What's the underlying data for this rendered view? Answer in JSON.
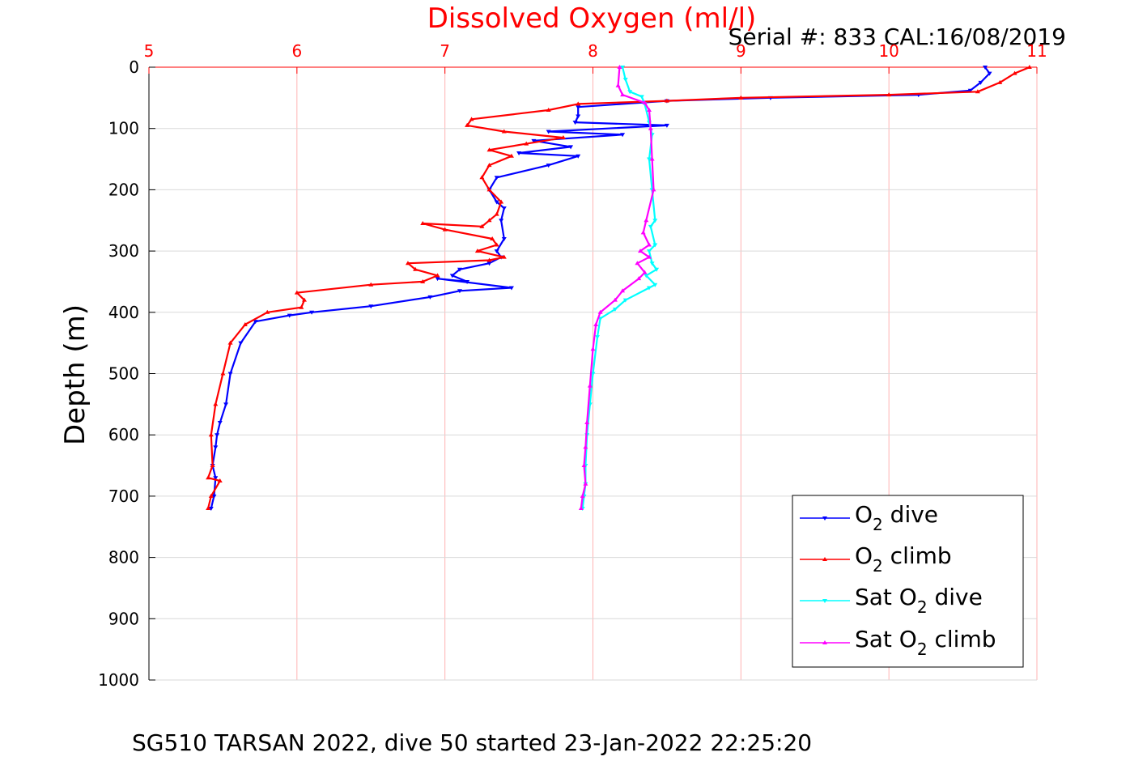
{
  "chart_data": {
    "type": "line",
    "title": "Dissolved Oxygen (ml/l)",
    "subtitle": "Serial #: 833  CAL:16/08/2019",
    "footer": "SG510 TARSAN 2022, dive 50 started 23-Jan-2022 22:25:20",
    "xlabel": "Dissolved Oxygen (ml/l)",
    "ylabel": "Depth (m)",
    "xlim": [
      5,
      11
    ],
    "ylim": [
      0,
      1000
    ],
    "y_reversed": true,
    "x_axis_position": "top",
    "x_ticks": [
      "5",
      "6",
      "7",
      "8",
      "9",
      "10",
      "11"
    ],
    "y_ticks": [
      "0",
      "100",
      "200",
      "300",
      "400",
      "500",
      "600",
      "700",
      "800",
      "900",
      "1000"
    ],
    "grid": true,
    "legend_position": "bottom-right",
    "legend": [
      {
        "main": "O",
        "sub": "2",
        "rest": " dive"
      },
      {
        "main": "O",
        "sub": "2",
        "rest": " climb"
      },
      {
        "main": "Sat O",
        "sub": "2",
        "rest": " dive"
      },
      {
        "main": "Sat O",
        "sub": "2",
        "rest": " climb"
      }
    ],
    "colors": {
      "title": "#ff0000",
      "x_ticks": "#ff0000",
      "grid_x": "#ffb3b3",
      "grid_y": "#d9d9d9",
      "axis": "#000000",
      "o2_dive": "#0000ff",
      "o2_climb": "#ff0000",
      "sat_dive": "#00ffff",
      "sat_climb": "#ff00ff"
    },
    "series": [
      {
        "key": "o2_dive",
        "color": "#0000ff",
        "marker": "triangle-down",
        "x": [
          10.65,
          10.68,
          10.62,
          10.55,
          10.2,
          9.2,
          8.5,
          7.9,
          7.9,
          7.88,
          8.5,
          7.7,
          8.2,
          7.6,
          7.85,
          7.5,
          7.9,
          7.7,
          7.35,
          7.3,
          7.35,
          7.4,
          7.38,
          7.4,
          7.35,
          7.38,
          7.3,
          7.1,
          7.05,
          7.15,
          6.95,
          7.45,
          7.1,
          6.9,
          6.5,
          6.1,
          5.95,
          5.72,
          5.62,
          5.55,
          5.52,
          5.48,
          5.46,
          5.45,
          5.43,
          5.45,
          5.44,
          5.42
        ],
        "y": [
          0,
          10,
          25,
          38,
          45,
          50,
          55,
          65,
          80,
          90,
          95,
          105,
          110,
          120,
          130,
          140,
          145,
          160,
          180,
          200,
          220,
          230,
          250,
          280,
          300,
          310,
          320,
          330,
          340,
          350,
          345,
          360,
          365,
          375,
          390,
          400,
          405,
          415,
          450,
          500,
          550,
          580,
          600,
          620,
          650,
          670,
          700,
          720
        ]
      },
      {
        "key": "o2_climb",
        "color": "#ff0000",
        "marker": "triangle-up",
        "x": [
          10.95,
          10.85,
          10.75,
          10.6,
          10.0,
          9.0,
          8.5,
          7.9,
          7.7,
          7.18,
          7.15,
          7.4,
          7.8,
          7.55,
          7.3,
          7.45,
          7.3,
          7.25,
          7.3,
          7.38,
          7.35,
          7.3,
          7.25,
          6.85,
          7.0,
          7.32,
          7.35,
          7.22,
          7.4,
          7.3,
          6.75,
          6.8,
          6.95,
          6.85,
          6.5,
          6.0,
          6.05,
          6.03,
          5.8,
          5.65,
          5.55,
          5.5,
          5.45,
          5.42,
          5.43,
          5.4,
          5.48,
          5.42,
          5.4
        ],
        "y": [
          0,
          10,
          25,
          40,
          45,
          50,
          55,
          60,
          70,
          85,
          95,
          105,
          115,
          125,
          135,
          145,
          160,
          180,
          200,
          220,
          240,
          250,
          260,
          255,
          265,
          280,
          290,
          300,
          310,
          315,
          320,
          330,
          340,
          350,
          355,
          368,
          380,
          392,
          400,
          420,
          450,
          500,
          550,
          600,
          650,
          670,
          675,
          700,
          720
        ]
      },
      {
        "key": "sat_dive",
        "color": "#00ffff",
        "marker": "triangle-down",
        "x": [
          8.2,
          8.22,
          8.25,
          8.33,
          8.35,
          8.38,
          8.4,
          8.38,
          8.4,
          8.42,
          8.39,
          8.42,
          8.38,
          8.4,
          8.43,
          8.36,
          8.42,
          8.38,
          8.22,
          8.15,
          8.05,
          8.03,
          8.0,
          7.98,
          7.96,
          7.95,
          7.95,
          7.94,
          7.93
        ],
        "y": [
          0,
          20,
          40,
          48,
          60,
          90,
          110,
          150,
          200,
          250,
          260,
          290,
          300,
          320,
          330,
          340,
          355,
          360,
          380,
          395,
          410,
          440,
          500,
          550,
          600,
          650,
          680,
          700,
          720
        ]
      },
      {
        "key": "sat_climb",
        "color": "#ff00ff",
        "marker": "triangle-up",
        "x": [
          8.18,
          8.17,
          8.2,
          8.35,
          8.38,
          8.39,
          8.4,
          8.41,
          8.36,
          8.34,
          8.38,
          8.32,
          8.38,
          8.3,
          8.35,
          8.31,
          8.2,
          8.15,
          8.05,
          8.02,
          8.0,
          7.98,
          7.96,
          7.95,
          7.94,
          7.95,
          7.93,
          7.92
        ],
        "y": [
          0,
          30,
          45,
          58,
          70,
          100,
          150,
          200,
          250,
          270,
          290,
          300,
          310,
          320,
          335,
          345,
          365,
          380,
          400,
          420,
          460,
          520,
          580,
          620,
          650,
          680,
          700,
          720
        ]
      }
    ]
  }
}
